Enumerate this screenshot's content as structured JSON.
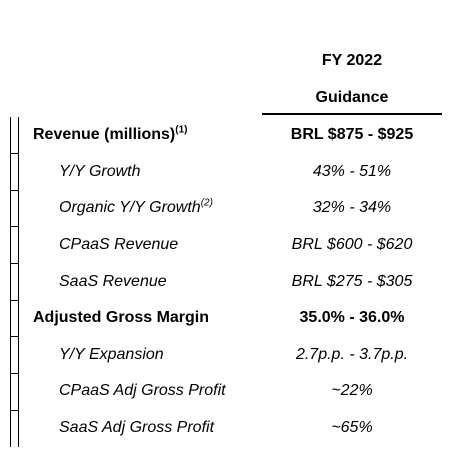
{
  "header": {
    "line1": "FY 2022",
    "line2": "Guidance"
  },
  "rows": [
    {
      "label": "Revenue (millions)",
      "sup": "(1)",
      "value": "BRL $875 - $925",
      "kind": "main"
    },
    {
      "label": "Y/Y Growth",
      "sup": "",
      "value": "43% - 51%",
      "kind": "sub"
    },
    {
      "label": "Organic Y/Y Growth",
      "sup": "(2)",
      "value": "32% - 34%",
      "kind": "sub"
    },
    {
      "label": "CPaaS Revenue",
      "sup": "",
      "value": "BRL $600 - $620",
      "kind": "sub"
    },
    {
      "label": "SaaS Revenue",
      "sup": "",
      "value": "BRL $275 - $305",
      "kind": "sub"
    },
    {
      "label": "Adjusted Gross Margin",
      "sup": "",
      "value": "35.0% - 36.0%",
      "kind": "main"
    },
    {
      "label": "Y/Y Expansion",
      "sup": "",
      "value": "2.7p.p. - 3.7p.p.",
      "kind": "sub"
    },
    {
      "label": "CPaaS Adj Gross Profit",
      "sup": "",
      "value": "~22%",
      "kind": "sub"
    },
    {
      "label": "SaaS Adj Gross Profit",
      "sup": "",
      "value": "~65%",
      "kind": "sub"
    }
  ]
}
